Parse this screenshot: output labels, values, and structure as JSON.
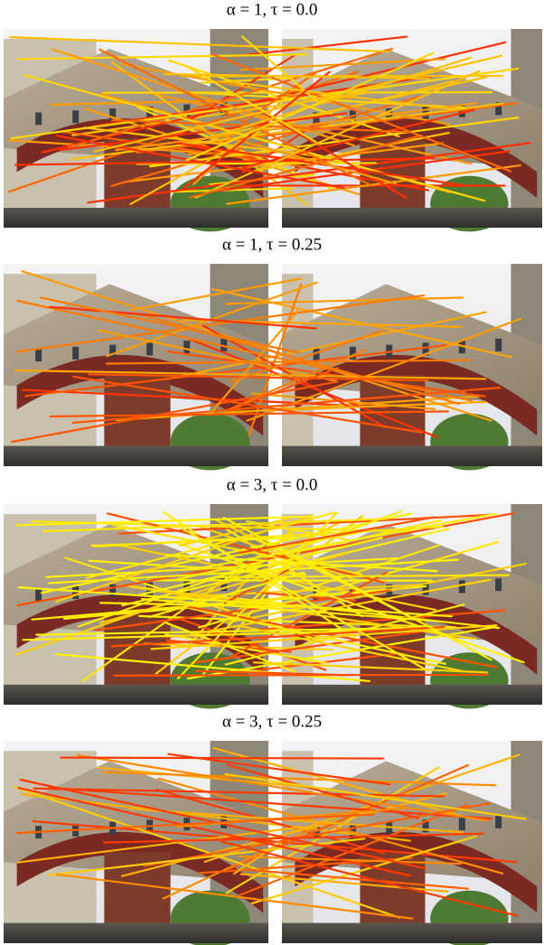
{
  "panels": [
    {
      "title": "α = 1, τ = 0.0"
    },
    {
      "title": "α = 1, τ = 0.25"
    },
    {
      "title": "α = 3, τ = 0.0"
    },
    {
      "title": "α = 3, τ = 0.25"
    }
  ]
}
